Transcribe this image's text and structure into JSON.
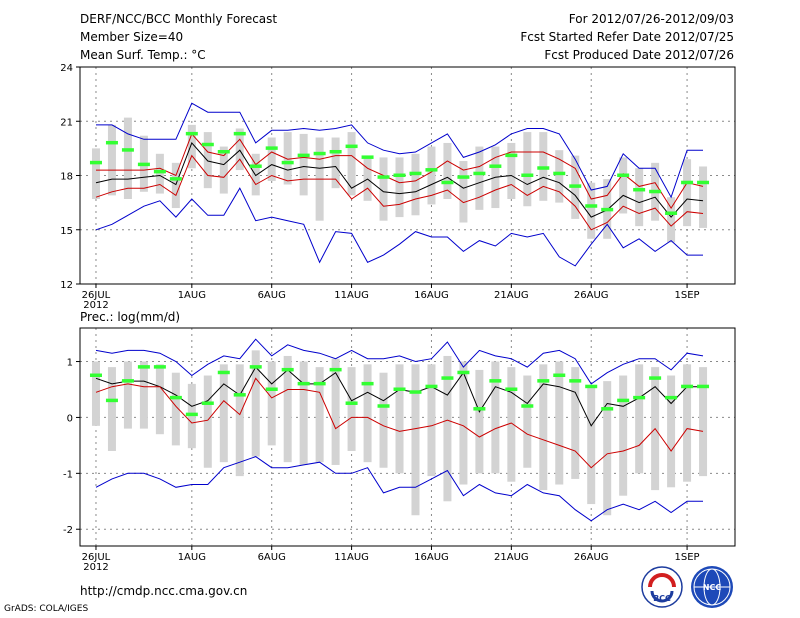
{
  "header": {
    "title": "DERF/NCC/BCC Monthly Forecast",
    "members": "Member Size=40",
    "variable": "Mean Surf. Temp.: °C",
    "range": "For 2012/07/26-2012/09/03",
    "started": "Fcst Started Refer Date 2012/07/25",
    "produced": "Fcst Produced Date 2012/07/26"
  },
  "footer": {
    "url": "http://cmdp.ncc.cma.gov.cn",
    "credit": "GrADS: COLA/IGES",
    "logo1": "BCC",
    "logo2": "NCC"
  },
  "colors": {
    "box": "#d3d3d3",
    "obs": "#33ff33",
    "mean": "#000000",
    "inner": "#cc0000",
    "outer": "#0000cc",
    "grid": "#8a8a8a"
  },
  "chart_data": [
    {
      "type": "line",
      "title": "Mean Surf. Temp.: °C",
      "xlabel": "",
      "ylabel": "",
      "x_ticks": [
        "26JUL",
        "1AUG",
        "6AUG",
        "11AUG",
        "16AUG",
        "21AUG",
        "26AUG",
        "1SEP"
      ],
      "x_tick_days": [
        0,
        6,
        11,
        16,
        21,
        26,
        31,
        37
      ],
      "year_label": "2012",
      "y_ticks": [
        "12",
        "15",
        "18",
        "21",
        "24"
      ],
      "ylim": [
        12,
        24
      ],
      "xlim": [
        -1,
        40
      ],
      "grid": true,
      "series": [
        {
          "name": "ensemble max",
          "values": [
            20.8,
            20.8,
            20.3,
            20.0,
            20.0,
            20.0,
            22.0,
            21.5,
            21.5,
            21.5,
            19.8,
            20.5,
            20.5,
            20.6,
            20.5,
            20.6,
            20.8,
            19.8,
            19.4,
            19.2,
            19.3,
            19.8,
            20.3,
            19.0,
            19.3,
            19.7,
            20.3,
            20.6,
            20.6,
            20.3,
            18.9,
            17.2,
            17.4,
            19.2,
            18.4,
            18.4,
            16.8,
            19.4,
            19.4
          ]
        },
        {
          "name": "upper spread",
          "values": [
            18.3,
            18.3,
            18.3,
            18.3,
            18.4,
            18.0,
            20.3,
            19.3,
            19.1,
            20.0,
            18.6,
            19.3,
            18.9,
            19.0,
            18.9,
            19.1,
            19.1,
            18.4,
            18.0,
            17.6,
            17.7,
            18.2,
            18.8,
            18.3,
            18.5,
            19.0,
            19.3,
            19.3,
            19.3,
            18.9,
            18.4,
            16.7,
            16.9,
            18.1,
            17.4,
            17.6,
            16.2,
            17.6,
            17.4
          ]
        },
        {
          "name": "ensemble mean",
          "values": [
            17.6,
            17.8,
            17.8,
            17.9,
            18.0,
            17.5,
            19.8,
            18.8,
            18.6,
            19.4,
            18.0,
            18.6,
            18.3,
            18.5,
            18.4,
            18.5,
            17.3,
            17.8,
            17.1,
            17.0,
            17.1,
            17.5,
            17.9,
            17.3,
            17.6,
            17.9,
            18.0,
            17.5,
            17.9,
            17.6,
            16.9,
            15.7,
            16.1,
            16.9,
            16.5,
            16.8,
            15.7,
            16.7,
            16.6
          ]
        },
        {
          "name": "lower spread",
          "values": [
            16.8,
            17.1,
            17.3,
            17.3,
            17.5,
            16.9,
            19.1,
            18.0,
            17.9,
            18.9,
            17.5,
            18.0,
            17.7,
            17.8,
            17.8,
            17.8,
            16.7,
            17.3,
            16.3,
            16.4,
            16.7,
            16.9,
            17.2,
            16.5,
            16.8,
            17.2,
            17.5,
            16.9,
            17.4,
            17.1,
            16.3,
            15.0,
            15.4,
            16.3,
            15.9,
            16.2,
            15.2,
            16.0,
            15.9
          ]
        },
        {
          "name": "ensemble min",
          "values": [
            15.0,
            15.3,
            15.8,
            16.3,
            16.6,
            15.7,
            16.7,
            15.8,
            15.8,
            17.3,
            15.5,
            15.7,
            15.5,
            15.3,
            13.2,
            14.9,
            14.8,
            13.2,
            13.6,
            14.2,
            14.9,
            14.6,
            14.6,
            13.8,
            14.4,
            14.1,
            14.8,
            14.6,
            14.8,
            13.5,
            13.0,
            14.2,
            15.3,
            14.0,
            14.5,
            13.8,
            14.4,
            13.6,
            13.6
          ]
        },
        {
          "name": "box top",
          "values": [
            19.5,
            20.8,
            21.2,
            20.2,
            19.2,
            18.7,
            20.8,
            20.4,
            19.6,
            20.6,
            19.2,
            20.1,
            20.4,
            20.3,
            20.1,
            20.1,
            20.4,
            19.0,
            19.0,
            19.0,
            19.2,
            19.6,
            19.8,
            18.8,
            19.6,
            19.6,
            19.8,
            20.4,
            20.4,
            19.4,
            19.1,
            17.6,
            17.8,
            19.0,
            18.4,
            18.7,
            16.8,
            18.9,
            18.5
          ]
        },
        {
          "name": "box bottom",
          "values": [
            16.7,
            16.9,
            16.7,
            17.1,
            17.0,
            16.2,
            18.4,
            17.3,
            17.0,
            18.3,
            16.9,
            17.7,
            17.5,
            16.9,
            15.5,
            17.3,
            16.9,
            16.6,
            15.5,
            15.7,
            15.8,
            16.4,
            16.7,
            15.4,
            16.1,
            16.2,
            16.7,
            16.3,
            16.6,
            16.5,
            15.6,
            14.5,
            14.5,
            15.9,
            15.2,
            15.5,
            14.3,
            15.2,
            15.1
          ]
        },
        {
          "name": "observed",
          "values": [
            18.7,
            19.8,
            19.4,
            18.6,
            18.2,
            17.8,
            20.3,
            19.7,
            19.3,
            20.3,
            18.5,
            19.5,
            18.7,
            19.1,
            19.2,
            19.3,
            19.6,
            19.0,
            17.9,
            18.0,
            18.1,
            18.3,
            17.6,
            17.9,
            18.1,
            18.5,
            19.1,
            18.0,
            18.4,
            18.1,
            17.4,
            16.3,
            16.1,
            18.0,
            17.2,
            17.1,
            15.9,
            17.6,
            17.6
          ]
        }
      ]
    },
    {
      "type": "line",
      "title": "Prec.: log(mm/d)",
      "xlabel": "",
      "ylabel": "",
      "x_ticks": [
        "26JUL",
        "1AUG",
        "6AUG",
        "11AUG",
        "16AUG",
        "21AUG",
        "26AUG",
        "1SEP"
      ],
      "x_tick_days": [
        0,
        6,
        11,
        16,
        21,
        26,
        31,
        37
      ],
      "year_label": "2012",
      "y_ticks": [
        "-2",
        "-1",
        "0",
        "1"
      ],
      "ylim": [
        -2.3,
        1.6
      ],
      "xlim": [
        -1,
        40
      ],
      "grid": true,
      "series": [
        {
          "name": "ensemble max",
          "values": [
            1.2,
            1.15,
            1.2,
            1.2,
            1.15,
            1.0,
            0.75,
            0.95,
            1.1,
            1.05,
            1.4,
            1.1,
            1.3,
            1.2,
            1.15,
            1.05,
            1.2,
            1.05,
            1.05,
            1.1,
            1.0,
            1.05,
            1.35,
            0.9,
            1.2,
            1.1,
            1.05,
            0.9,
            1.15,
            1.2,
            1.05,
            0.6,
            0.8,
            0.95,
            1.05,
            1.05,
            0.85,
            1.15,
            1.1
          ]
        },
        {
          "name": "ensemble mean",
          "values": [
            0.7,
            0.6,
            0.65,
            0.65,
            0.55,
            0.4,
            0.2,
            0.3,
            0.6,
            0.4,
            0.9,
            0.6,
            0.85,
            0.6,
            0.6,
            0.8,
            0.3,
            0.45,
            0.3,
            0.5,
            0.45,
            0.55,
            0.4,
            0.8,
            0.1,
            0.55,
            0.45,
            0.25,
            0.6,
            0.55,
            0.45,
            -0.15,
            0.25,
            0.2,
            0.35,
            0.55,
            0.25,
            0.55,
            0.55
          ]
        },
        {
          "name": "ensemble lower",
          "values": [
            0.45,
            0.55,
            0.6,
            0.55,
            0.55,
            0.2,
            -0.1,
            -0.05,
            0.3,
            0.05,
            0.7,
            0.35,
            0.5,
            0.5,
            0.45,
            -0.2,
            0.0,
            0.0,
            -0.15,
            -0.25,
            -0.2,
            -0.15,
            -0.05,
            -0.15,
            -0.35,
            -0.2,
            -0.1,
            -0.3,
            -0.4,
            -0.5,
            -0.6,
            -0.9,
            -0.65,
            -0.6,
            -0.5,
            -0.2,
            -0.6,
            -0.2,
            -0.25
          ]
        },
        {
          "name": "ensemble min",
          "values": [
            -1.25,
            -1.1,
            -1.0,
            -1.0,
            -1.1,
            -1.25,
            -1.2,
            -1.2,
            -0.9,
            -0.8,
            -0.7,
            -0.9,
            -0.9,
            -0.85,
            -0.8,
            -1.0,
            -1.0,
            -0.9,
            -1.35,
            -1.25,
            -1.25,
            -1.1,
            -0.95,
            -1.4,
            -1.2,
            -1.35,
            -1.4,
            -1.2,
            -1.35,
            -1.4,
            -1.65,
            -1.85,
            -1.65,
            -1.55,
            -1.65,
            -1.5,
            -1.7,
            -1.5,
            -1.5
          ]
        },
        {
          "name": "box top",
          "values": [
            1.0,
            0.9,
            1.0,
            1.0,
            0.95,
            0.8,
            0.6,
            0.75,
            0.95,
            0.95,
            1.2,
            1.0,
            1.1,
            1.0,
            0.9,
            1.05,
            0.9,
            0.95,
            0.8,
            0.95,
            0.95,
            0.95,
            1.1,
            1.0,
            0.85,
            1.0,
            0.9,
            0.75,
            0.95,
            1.0,
            0.9,
            0.55,
            0.65,
            0.75,
            0.95,
            0.9,
            0.75,
            0.95,
            0.9
          ]
        },
        {
          "name": "box bottom",
          "values": [
            -0.15,
            -0.6,
            -0.2,
            -0.2,
            -0.3,
            -0.5,
            -0.55,
            -0.9,
            -0.8,
            -1.05,
            -0.7,
            -0.5,
            -0.8,
            -0.85,
            -0.8,
            -0.85,
            -0.6,
            -0.8,
            -0.9,
            -1.0,
            -1.75,
            -1.05,
            -1.5,
            -1.2,
            -1.0,
            -1.0,
            -1.15,
            -0.9,
            -1.3,
            -1.2,
            -1.1,
            -1.55,
            -1.75,
            -1.4,
            -1.0,
            -1.3,
            -1.25,
            -1.15,
            -1.05
          ]
        },
        {
          "name": "observed",
          "values": [
            0.75,
            0.3,
            0.65,
            0.9,
            0.9,
            0.35,
            0.05,
            0.25,
            0.8,
            0.4,
            0.9,
            0.5,
            0.85,
            0.6,
            0.6,
            0.85,
            0.25,
            0.6,
            0.2,
            0.5,
            0.45,
            0.55,
            0.7,
            0.8,
            0.15,
            0.65,
            0.5,
            0.2,
            0.65,
            0.75,
            0.65,
            0.55,
            0.15,
            0.3,
            0.35,
            0.7,
            0.35,
            0.55,
            0.55
          ]
        }
      ]
    }
  ]
}
